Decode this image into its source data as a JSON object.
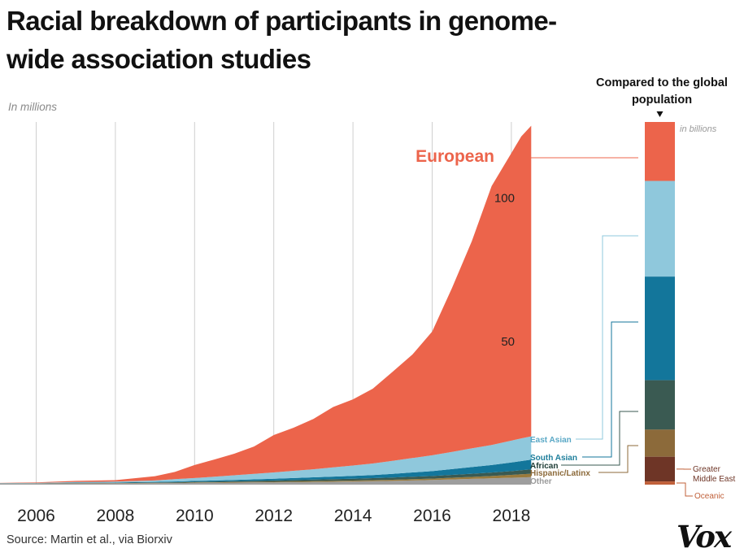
{
  "title": "Racial breakdown of participants in genome-wide association studies",
  "units_label": "In millions",
  "compare_label": "Compared to the global population",
  "compare_units_label": "in billions",
  "source": "Source: Martin et al., via Biorxiv",
  "logo_text": "Vox",
  "chart_data": [
    {
      "type": "area",
      "stacked": true,
      "ylabel": "In millions",
      "xlim": [
        2005,
        2018.5
      ],
      "ylim": [
        0,
        125
      ],
      "grid": true,
      "x_ticks": [
        "2006",
        "2008",
        "2010",
        "2012",
        "2014",
        "2016",
        "2018"
      ],
      "y_ticks": [
        "50",
        "100"
      ],
      "x": [
        2005,
        2006,
        2007,
        2008,
        2009,
        2009.5,
        2010,
        2010.5,
        2011,
        2011.5,
        2012,
        2012.5,
        2013,
        2013.5,
        2014,
        2014.5,
        2015,
        2015.5,
        2016,
        2016.5,
        2017,
        2017.5,
        2018,
        2018.25,
        2018.5
      ],
      "series": [
        {
          "name": "Other",
          "color": "#9e9e9e",
          "values": [
            0.3,
            0.35,
            0.4,
            0.45,
            0.5,
            0.55,
            0.6,
            0.65,
            0.7,
            0.75,
            0.8,
            0.85,
            0.9,
            1.0,
            1.1,
            1.2,
            1.3,
            1.45,
            1.6,
            1.8,
            2.0,
            2.2,
            2.4,
            2.5,
            2.6
          ]
        },
        {
          "name": "Hispanic/Latinx",
          "color": "#9a7a3c",
          "values": [
            0.05,
            0.05,
            0.1,
            0.1,
            0.1,
            0.1,
            0.15,
            0.15,
            0.2,
            0.2,
            0.2,
            0.25,
            0.3,
            0.3,
            0.3,
            0.35,
            0.4,
            0.45,
            0.5,
            0.6,
            0.7,
            0.8,
            1.0,
            1.1,
            1.2
          ]
        },
        {
          "name": "African",
          "color": "#3a5a52",
          "values": [
            0.05,
            0.05,
            0.1,
            0.1,
            0.15,
            0.2,
            0.25,
            0.3,
            0.35,
            0.4,
            0.45,
            0.5,
            0.55,
            0.6,
            0.65,
            0.7,
            0.75,
            0.85,
            0.9,
            1.0,
            1.1,
            1.2,
            1.3,
            1.4,
            1.5
          ]
        },
        {
          "name": "South Asian",
          "color": "#13769b",
          "values": [
            0.05,
            0.05,
            0.1,
            0.1,
            0.2,
            0.25,
            0.3,
            0.35,
            0.4,
            0.5,
            0.6,
            0.7,
            0.8,
            0.9,
            1.0,
            1.1,
            1.3,
            1.5,
            1.7,
            2.0,
            2.3,
            2.6,
            3.0,
            3.2,
            3.4
          ]
        },
        {
          "name": "East Asian",
          "color": "#8fc8dc",
          "values": [
            0.05,
            0.1,
            0.2,
            0.3,
            0.5,
            0.8,
            1.0,
            1.3,
            1.6,
            1.9,
            2.2,
            2.5,
            2.8,
            3.2,
            3.6,
            4.0,
            4.5,
            5.0,
            5.5,
            6.0,
            6.5,
            7.0,
            7.6,
            7.9,
            8.1
          ]
        },
        {
          "name": "European",
          "color": "#ec644b",
          "values": [
            0.1,
            0.2,
            0.4,
            0.5,
            1.5,
            2.5,
            4.5,
            6.0,
            7.5,
            9.5,
            13.0,
            15.0,
            17.5,
            21.0,
            23.0,
            26.0,
            31.0,
            36.0,
            43.0,
            57.0,
            72.0,
            90.0,
            100.0,
            105.0,
            108.0
          ]
        }
      ],
      "annotations": [
        "European"
      ],
      "legend_labels": [
        "East Asian",
        "South Asian",
        "African",
        "Hispanic/Latinx",
        "Other"
      ]
    },
    {
      "type": "bar",
      "stacked": true,
      "title": "Compared to the global population",
      "ylabel": "in billions",
      "categories": [
        "European",
        "East Asian",
        "South Asian",
        "African",
        "Hispanic/Latinx",
        "Greater Middle East",
        "Oceanic"
      ],
      "values": [
        0.74,
        1.2,
        1.3,
        0.62,
        0.34,
        0.31,
        0.04
      ],
      "colors": [
        "#ec644b",
        "#8fc8dc",
        "#13769b",
        "#3a5a52",
        "#8c6a3a",
        "#6e3526",
        "#c0603a"
      ],
      "side_labels": [
        "Greater Middle East",
        "Oceanic"
      ]
    }
  ]
}
